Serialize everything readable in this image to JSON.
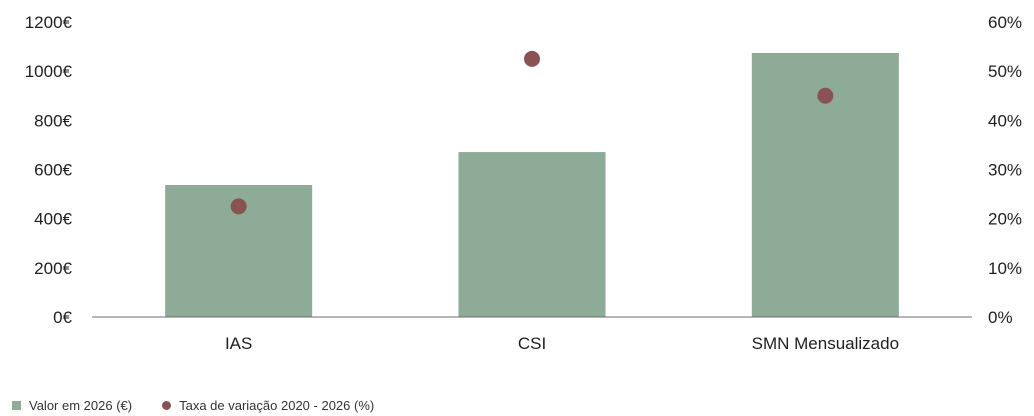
{
  "chart_data": {
    "type": "bar",
    "categories": [
      "IAS",
      "CSI",
      "SMN Mensualizado"
    ],
    "series": [
      {
        "name": "Valor em 2026 (€)",
        "kind": "bar",
        "axis": "left",
        "color": "#8eab97",
        "values": [
          537,
          671,
          1074
        ]
      },
      {
        "name": "Taxa de variação 2020 - 2026 (%)",
        "kind": "scatter",
        "axis": "right",
        "color": "#8a5252",
        "values": [
          22.5,
          52.5,
          45
        ]
      }
    ],
    "y_left": {
      "ylim": [
        0,
        1200
      ],
      "ticks": [
        0,
        200,
        400,
        600,
        800,
        1000,
        1200
      ],
      "tick_labels": [
        "0€",
        "200€",
        "400€",
        "600€",
        "800€",
        "1000€",
        "1200€"
      ]
    },
    "y_right": {
      "ylim": [
        0,
        60
      ],
      "ticks": [
        0,
        10,
        20,
        30,
        40,
        50,
        60
      ],
      "tick_labels": [
        "0%",
        "10%",
        "20%",
        "30%",
        "40%",
        "50%",
        "60%"
      ]
    },
    "grid": false,
    "legend_placement": "bottom-left"
  },
  "legend": {
    "bar_label": "Valor em 2026 (€)",
    "dot_label": "Taxa de variação 2020 - 2026 (%)"
  }
}
